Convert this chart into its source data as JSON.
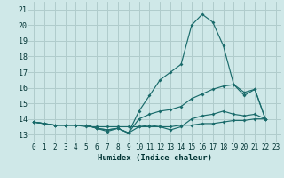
{
  "background_color": "#cfe8e8",
  "grid_color": "#b0cccc",
  "line_color": "#1a6b6b",
  "xlabel": "Humidex (Indice chaleur)",
  "xlim": [
    -0.5,
    23.5
  ],
  "ylim": [
    12.5,
    21.5
  ],
  "xticks": [
    0,
    1,
    2,
    3,
    4,
    5,
    6,
    7,
    8,
    9,
    10,
    11,
    12,
    13,
    14,
    15,
    16,
    17,
    18,
    19,
    20,
    21,
    22,
    23
  ],
  "yticks": [
    13,
    14,
    15,
    16,
    17,
    18,
    19,
    20,
    21
  ],
  "series": [
    [
      13.8,
      13.7,
      13.6,
      13.6,
      13.6,
      13.6,
      13.4,
      13.3,
      13.4,
      13.1,
      14.5,
      15.5,
      16.5,
      17.0,
      17.5,
      20.0,
      20.7,
      20.2,
      18.7,
      16.2,
      15.7,
      15.9,
      14.0
    ],
    [
      13.8,
      13.7,
      13.6,
      13.6,
      13.6,
      13.6,
      13.4,
      13.3,
      13.4,
      13.1,
      14.0,
      14.3,
      14.5,
      14.6,
      14.8,
      15.3,
      15.6,
      15.9,
      16.1,
      16.2,
      15.5,
      15.9,
      14.0
    ],
    [
      13.8,
      13.7,
      13.6,
      13.6,
      13.6,
      13.6,
      13.4,
      13.2,
      13.4,
      13.1,
      13.5,
      13.6,
      13.5,
      13.3,
      13.5,
      14.0,
      14.2,
      14.3,
      14.5,
      14.3,
      14.2,
      14.3,
      14.0
    ],
    [
      13.8,
      13.7,
      13.6,
      13.6,
      13.6,
      13.5,
      13.5,
      13.5,
      13.5,
      13.5,
      13.5,
      13.5,
      13.5,
      13.5,
      13.6,
      13.6,
      13.7,
      13.7,
      13.8,
      13.9,
      13.9,
      14.0,
      14.0
    ]
  ]
}
